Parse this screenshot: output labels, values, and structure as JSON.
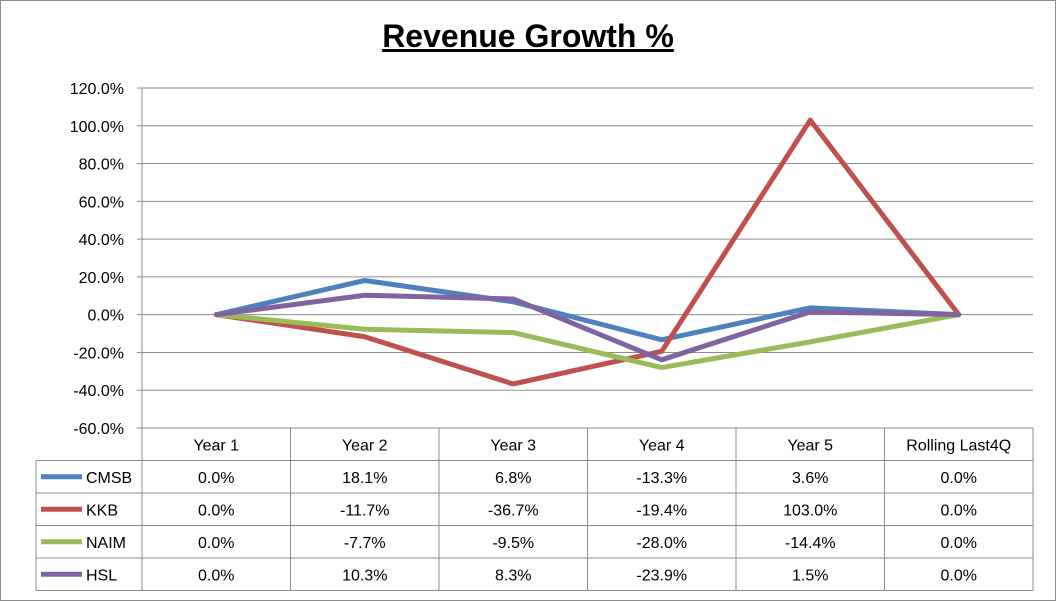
{
  "chart_data": {
    "type": "line",
    "title": "Revenue Growth %",
    "xlabel": "",
    "ylabel": "",
    "ylim": [
      -60,
      120
    ],
    "y_ticks": [
      "120.0%",
      "100.0%",
      "80.0%",
      "60.0%",
      "40.0%",
      "20.0%",
      "0.0%",
      "-20.0%",
      "-40.0%",
      "-60.0%"
    ],
    "grid": true,
    "legend": "data-table",
    "categories": [
      "Year 1",
      "Year 2",
      "Year 3",
      "Year 4",
      "Year 5",
      "Rolling Last4Q"
    ],
    "series": [
      {
        "name": "CMSB",
        "color": "#4f81bd",
        "values": [
          0.0,
          18.1,
          6.8,
          -13.3,
          3.6,
          0.0
        ],
        "labels": [
          "0.0%",
          "18.1%",
          "6.8%",
          "-13.3%",
          "3.6%",
          "0.0%"
        ]
      },
      {
        "name": "KKB",
        "color": "#c0504d",
        "values": [
          0.0,
          -11.7,
          -36.7,
          -19.4,
          103.0,
          0.0
        ],
        "labels": [
          "0.0%",
          "-11.7%",
          "-36.7%",
          "-19.4%",
          "103.0%",
          "0.0%"
        ]
      },
      {
        "name": "NAIM",
        "color": "#9bbb59",
        "values": [
          0.0,
          -7.7,
          -9.5,
          -28.0,
          -14.4,
          0.0
        ],
        "labels": [
          "0.0%",
          "-7.7%",
          "-9.5%",
          "-28.0%",
          "-14.4%",
          "0.0%"
        ]
      },
      {
        "name": "HSL",
        "color": "#8064a2",
        "values": [
          0.0,
          10.3,
          8.3,
          -23.9,
          1.5,
          0.0
        ],
        "labels": [
          "0.0%",
          "10.3%",
          "8.3%",
          "-23.9%",
          "1.5%",
          "0.0%"
        ]
      }
    ]
  }
}
